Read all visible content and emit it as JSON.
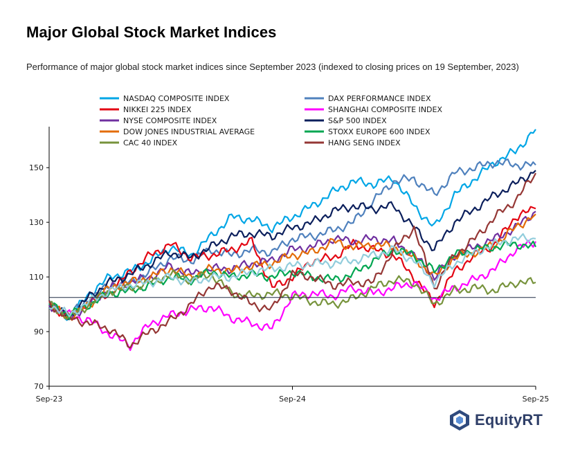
{
  "header": {
    "title": "Major Global Stock Market Indices",
    "subtitle": "Performance of major global stock market indices since September 2023 (indexed to closing prices on 19 September, 2023)"
  },
  "branding": {
    "logo_text": "EquityRT",
    "logo_icon": "equityrt-logo-icon"
  },
  "chart_data": {
    "type": "line",
    "title": "Major Global Stock Market Indices",
    "subtitle": "Performance of major global stock market indices since September 2023 (indexed to closing prices on 19 September, 2023)",
    "xlabel": "",
    "ylabel": "",
    "x_ticks": [
      "Sep-23",
      "Sep-24",
      "Sep-25"
    ],
    "y_ticks": [
      70,
      90,
      110,
      130,
      150
    ],
    "ylim": [
      70,
      165
    ],
    "xlim": [
      "2023-09",
      "2025-09"
    ],
    "x": [
      "2023-09",
      "2023-10",
      "2023-11",
      "2023-12",
      "2024-01",
      "2024-02",
      "2024-03",
      "2024-04",
      "2024-05",
      "2024-06",
      "2024-07",
      "2024-08",
      "2024-09",
      "2024-10",
      "2024-11",
      "2024-12",
      "2025-01",
      "2025-02",
      "2025-03",
      "2025-04",
      "2025-05",
      "2025-06",
      "2025-07",
      "2025-08",
      "2025-09"
    ],
    "reference_line": 102.5,
    "grid": false,
    "legend_position": "top",
    "series": [
      {
        "name": "NASDAQ COMPOSITE INDEX",
        "color": "#00a6e6",
        "values": [
          100,
          95,
          104,
          110,
          112,
          116,
          121,
          118,
          125,
          132,
          131,
          128,
          132,
          136,
          141,
          145,
          144,
          146,
          136,
          128,
          140,
          146,
          152,
          156,
          164
        ]
      },
      {
        "name": "DAX PERFORMANCE INDEX",
        "color": "#4f81bd",
        "values": [
          100,
          96,
          102,
          107,
          108,
          112,
          117,
          116,
          120,
          118,
          120,
          119,
          124,
          125,
          127,
          130,
          138,
          145,
          146,
          140,
          148,
          150,
          152,
          151,
          151
        ]
      },
      {
        "name": "NIKKEI 225 INDEX",
        "color": "#e30613",
        "values": [
          100,
          95,
          101,
          104,
          112,
          118,
          122,
          117,
          118,
          120,
          123,
          106,
          110,
          116,
          117,
          122,
          120,
          118,
          110,
          100,
          112,
          118,
          122,
          132,
          135
        ]
      },
      {
        "name": "SHANGHAI COMPOSITE INDEX",
        "color": "#ff00ff",
        "values": [
          100,
          96,
          94,
          89,
          85,
          93,
          96,
          98,
          99,
          95,
          93,
          91,
          103,
          104,
          103,
          106,
          104,
          106,
          108,
          102,
          106,
          109,
          113,
          120,
          123
        ]
      },
      {
        "name": "NYSE COMPOSITE INDEX",
        "color": "#7030a0",
        "values": [
          100,
          95,
          100,
          106,
          108,
          110,
          114,
          111,
          113,
          113,
          115,
          116,
          120,
          121,
          124,
          123,
          124,
          123,
          118,
          110,
          118,
          121,
          124,
          128,
          134
        ]
      },
      {
        "name": "S&P 500 INDEX",
        "color": "#0b1f5c",
        "values": [
          100,
          95,
          103,
          108,
          111,
          115,
          119,
          117,
          121,
          125,
          126,
          125,
          128,
          130,
          134,
          136,
          135,
          136,
          128,
          120,
          130,
          135,
          140,
          144,
          149
        ]
      },
      {
        "name": "DOW JONES INDUSTRIAL AVERAGE",
        "color": "#e36c09",
        "values": [
          100,
          95,
          100,
          106,
          108,
          110,
          113,
          110,
          113,
          112,
          114,
          115,
          118,
          119,
          123,
          121,
          122,
          121,
          117,
          110,
          117,
          119,
          122,
          128,
          133
        ]
      },
      {
        "name": "STOXX EUROPE 600 INDEX",
        "color": "#00a651",
        "values": [
          100,
          96,
          100,
          104,
          105,
          107,
          110,
          109,
          112,
          110,
          111,
          110,
          112,
          110,
          109,
          111,
          116,
          120,
          118,
          112,
          118,
          120,
          121,
          122,
          121
        ]
      },
      {
        "name": "CAC 40 INDEX",
        "color": "#77933c",
        "values": [
          100,
          95,
          100,
          105,
          106,
          108,
          111,
          109,
          111,
          104,
          103,
          104,
          103,
          101,
          100,
          102,
          106,
          109,
          108,
          100,
          105,
          106,
          105,
          108,
          108
        ]
      },
      {
        "name": "HANG SENG INDEX",
        "color": "#953735",
        "values": [
          100,
          95,
          93,
          91,
          85,
          90,
          94,
          100,
          107,
          105,
          100,
          98,
          111,
          110,
          107,
          108,
          108,
          120,
          128,
          106,
          118,
          124,
          132,
          138,
          148
        ]
      },
      {
        "name": "",
        "color": "#92cddc",
        "values": [
          100,
          96,
          101,
          105,
          107,
          108,
          110,
          108,
          110,
          110,
          112,
          113,
          114,
          115,
          115,
          116,
          118,
          120,
          116,
          108,
          115,
          119,
          122,
          124,
          124
        ]
      }
    ]
  }
}
